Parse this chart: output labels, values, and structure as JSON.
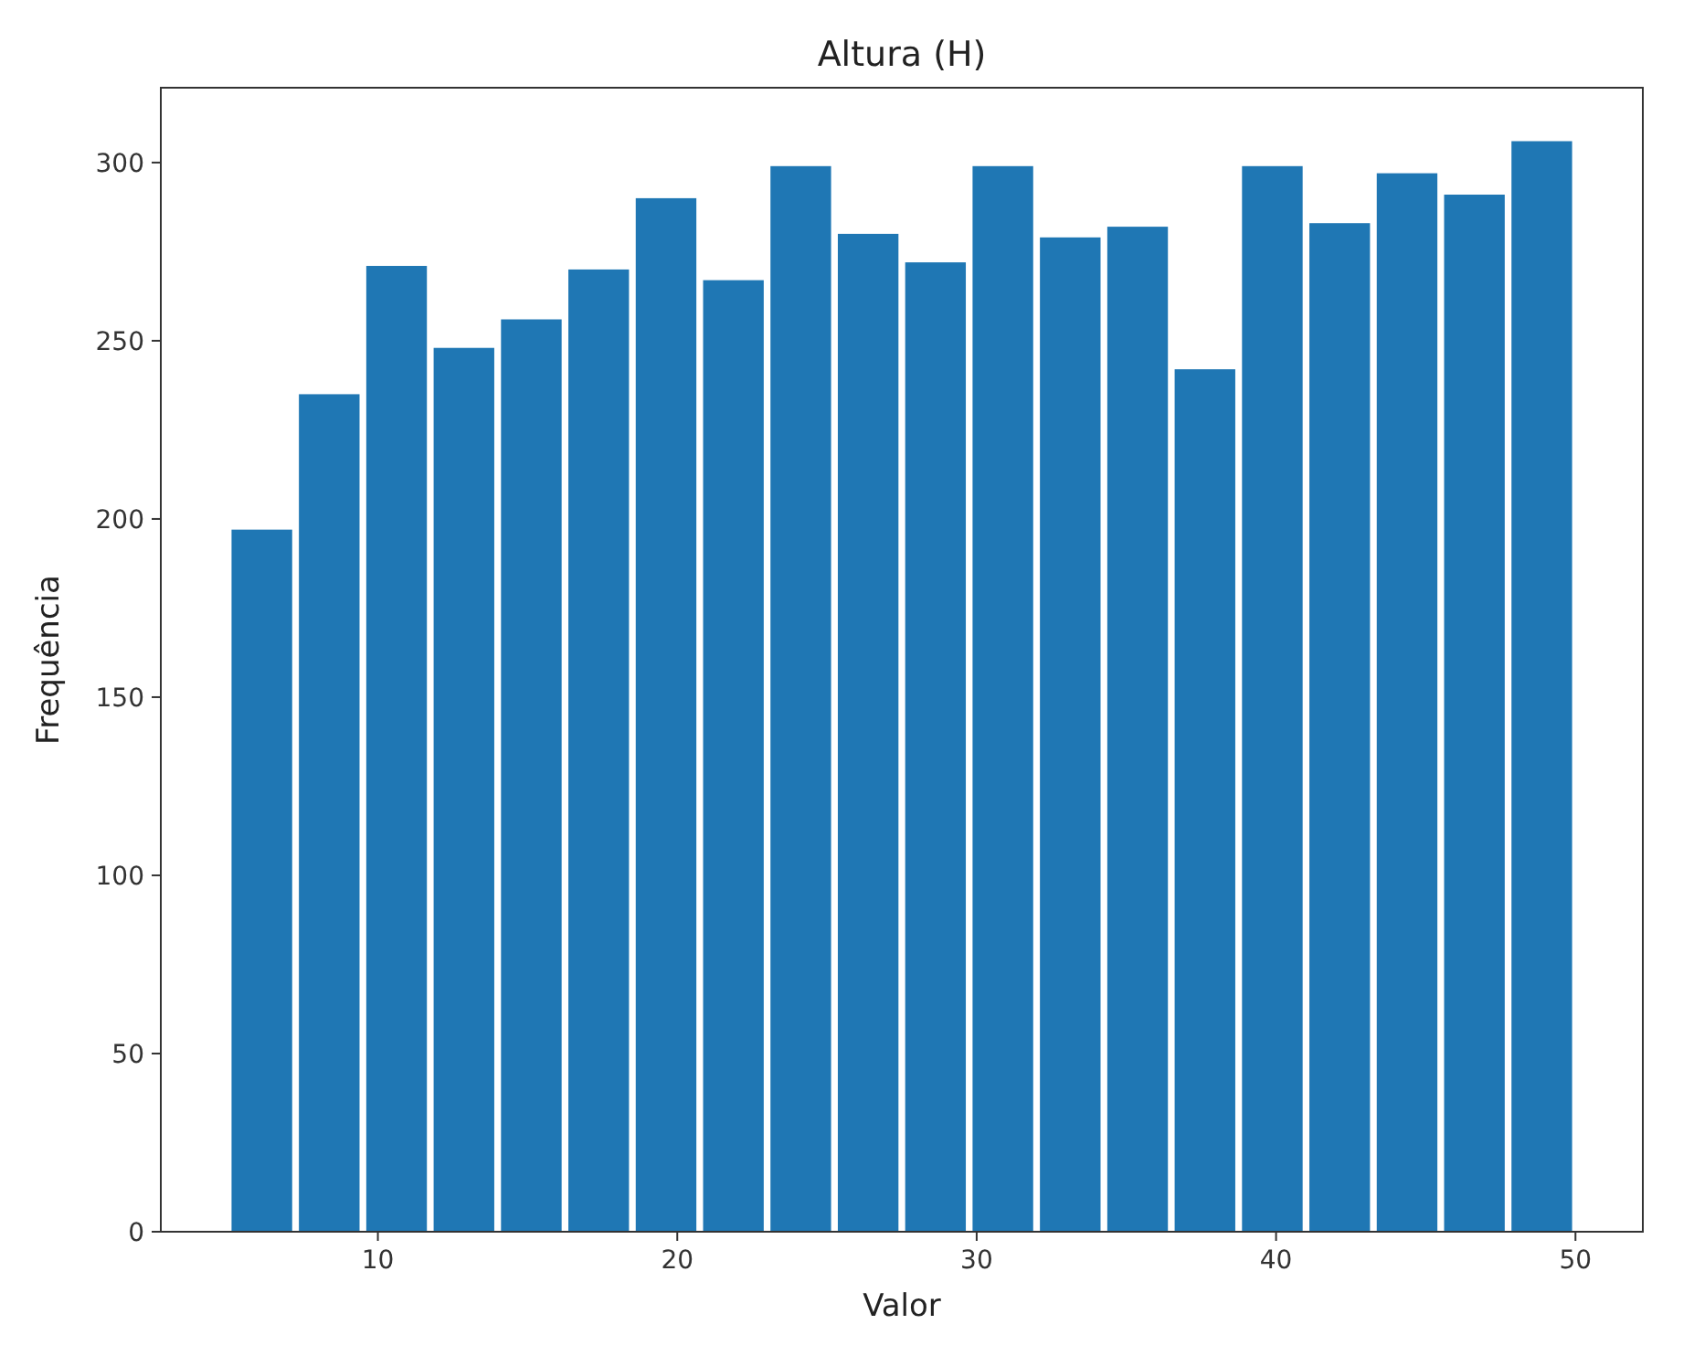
{
  "chart_data": {
    "type": "histogram",
    "title": "Altura (H)",
    "xlabel": "Valor",
    "ylabel": "Frequência",
    "bins": [
      5,
      7.25,
      9.5,
      11.75,
      14,
      16.25,
      18.5,
      20.75,
      23,
      25.25,
      27.5,
      29.75,
      32,
      34.25,
      36.5,
      38.75,
      41,
      43.25,
      45.5,
      47.75,
      50
    ],
    "values": [
      197,
      235,
      271,
      248,
      256,
      270,
      290,
      267,
      299,
      280,
      272,
      299,
      279,
      282,
      242,
      299,
      283,
      297,
      291,
      306
    ],
    "color": "#1f77b4",
    "xlim": [
      2.75,
      52.25
    ],
    "ylim": [
      0,
      321
    ],
    "xticks": [
      10,
      20,
      30,
      40,
      50
    ],
    "yticks": [
      0,
      50,
      100,
      150,
      200,
      250,
      300
    ],
    "grid": false
  }
}
